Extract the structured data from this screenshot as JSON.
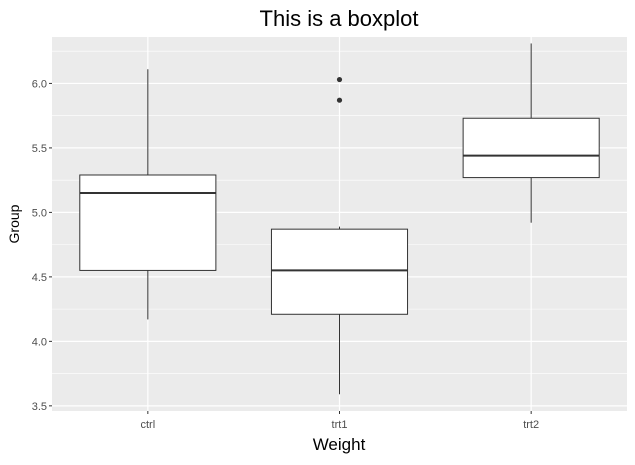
{
  "chart_data": {
    "type": "boxplot",
    "title": "This is a boxplot",
    "xlabel": "Weight",
    "ylabel": "Group",
    "categories": [
      "ctrl",
      "trt1",
      "trt2"
    ],
    "ylim": [
      3.46,
      6.36
    ],
    "yticks": [
      3.5,
      4.0,
      4.5,
      5.0,
      5.5,
      6.0
    ],
    "ytick_labels": [
      "3.5",
      "4.0",
      "4.5",
      "5.0",
      "5.5",
      "6.0"
    ],
    "boxes": [
      {
        "category": "ctrl",
        "whisker_low": 4.17,
        "q1": 4.55,
        "median": 5.15,
        "q3": 5.29,
        "whisker_high": 6.11,
        "outliers": []
      },
      {
        "category": "trt1",
        "whisker_low": 3.59,
        "q1": 4.21,
        "median": 4.55,
        "q3": 4.87,
        "whisker_high": 4.89,
        "outliers": [
          5.87,
          6.03
        ]
      },
      {
        "category": "trt2",
        "whisker_low": 4.92,
        "q1": 5.27,
        "median": 5.44,
        "q3": 5.73,
        "whisker_high": 6.31,
        "outliers": []
      }
    ],
    "grid": true,
    "panel_color": "#ebebeb",
    "grid_color": "#ffffff",
    "box_fill": "#ffffff",
    "line_color": "#333333"
  }
}
